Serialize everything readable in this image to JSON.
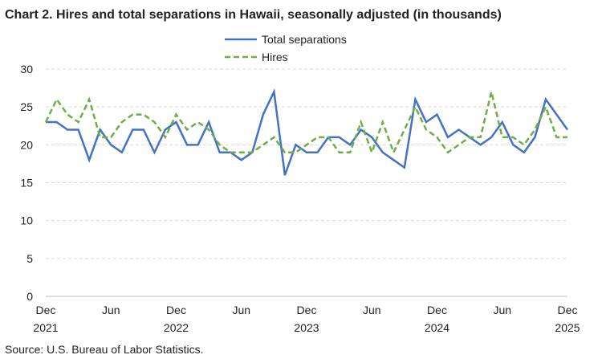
{
  "chart_data": {
    "type": "line",
    "title": "Chart 2. Hires and total separations in Hawaii, seasonally adjusted (in thousands)",
    "source": "Source: U.S. Bureau of Labor Statistics.",
    "categories": [
      "Dec 2021",
      null,
      null,
      null,
      null,
      null,
      "Jun",
      null,
      null,
      null,
      null,
      null,
      "Dec 2022",
      null,
      null,
      null,
      null,
      null,
      "Jun",
      null,
      null,
      null,
      null,
      null,
      "Dec 2023",
      null,
      null,
      null,
      null,
      null,
      "Jun",
      null,
      null,
      null,
      null,
      null,
      "Dec 2024",
      null,
      null,
      null,
      null,
      null,
      "Jun",
      null,
      null,
      null,
      null,
      null,
      "Dec 2025"
    ],
    "series": [
      {
        "name": "Total separations",
        "color": "#4472c4",
        "dash": "none",
        "values": [
          23,
          23,
          22,
          22,
          18,
          22,
          20,
          19,
          22,
          22,
          19,
          22,
          23,
          20,
          20,
          23,
          19,
          19,
          18,
          19,
          24,
          27,
          16,
          20,
          19,
          19,
          21,
          21,
          20,
          22,
          21,
          19,
          18,
          17,
          26,
          23,
          24,
          21,
          22,
          21,
          20,
          21,
          23,
          20,
          19,
          21,
          26,
          24,
          22
        ]
      },
      {
        "name": "Hires",
        "color": "#70ad47",
        "dash": "7 4",
        "values": [
          23,
          26,
          24,
          23,
          26,
          21,
          21,
          23,
          24,
          24,
          23,
          21,
          24,
          22,
          23,
          22,
          20,
          19,
          19,
          19,
          20,
          21,
          19,
          19,
          20,
          21,
          21,
          19,
          19,
          23,
          19,
          23,
          19,
          22,
          25,
          22,
          21,
          19,
          20,
          21,
          21,
          27,
          21,
          21,
          20,
          22,
          25,
          21,
          21
        ]
      }
    ],
    "ylim": [
      0,
      30
    ],
    "yticks": [
      0,
      5,
      10,
      15,
      20,
      25,
      30
    ],
    "grid": true
  }
}
